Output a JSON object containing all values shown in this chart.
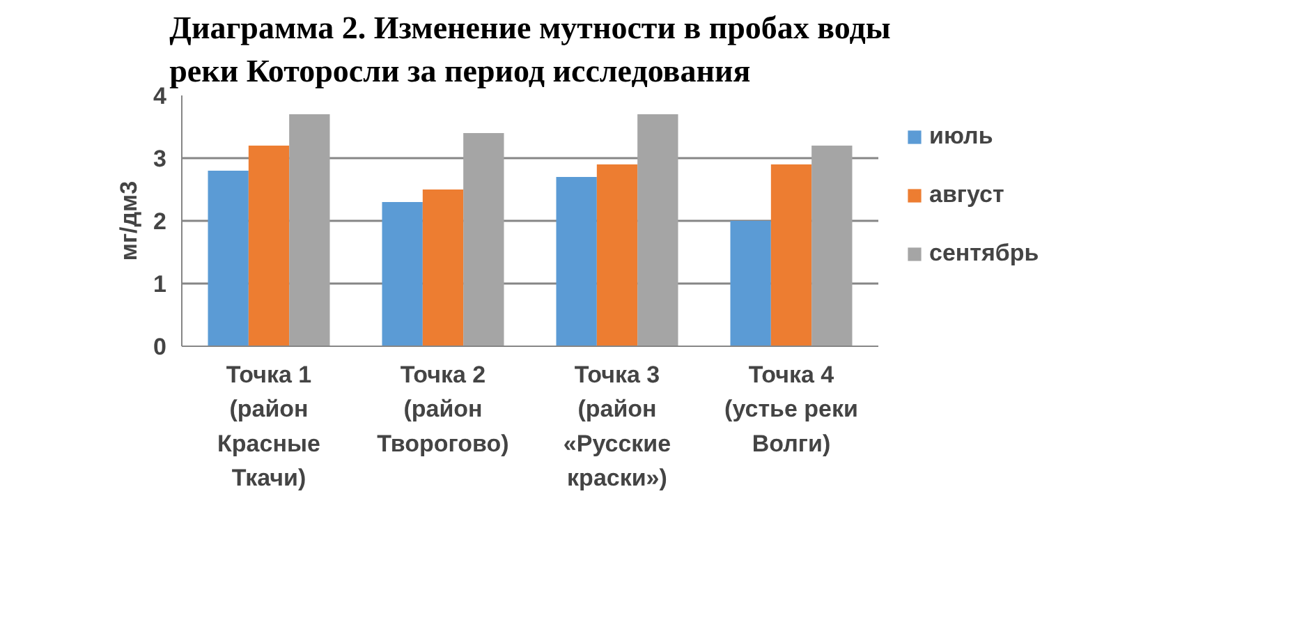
{
  "chart_data": {
    "type": "bar",
    "title": "Диаграмма 2. Изменение мутности в пробах воды реки Которосли за период исследования",
    "ylabel": "мг/дм3",
    "categories": [
      "Точка 1 (район Красные Ткачи)",
      "Точка 2 (район Творогово)",
      "Точка 3 (район «Русские краски»)",
      "Точка 4 (устье реки Волги)"
    ],
    "series": [
      {
        "name": "июль",
        "color": "#5b9bd5",
        "values": [
          2.8,
          2.3,
          2.7,
          2.0
        ]
      },
      {
        "name": "август",
        "color": "#ed7d31",
        "values": [
          3.2,
          2.5,
          2.9,
          2.9
        ]
      },
      {
        "name": "сентябрь",
        "color": "#a5a5a5",
        "values": [
          3.7,
          3.4,
          3.7,
          3.2
        ]
      }
    ],
    "ylim": [
      0,
      4
    ],
    "yticks": [
      0,
      1,
      2,
      3,
      4
    ],
    "grid": "y",
    "legend": "right"
  }
}
